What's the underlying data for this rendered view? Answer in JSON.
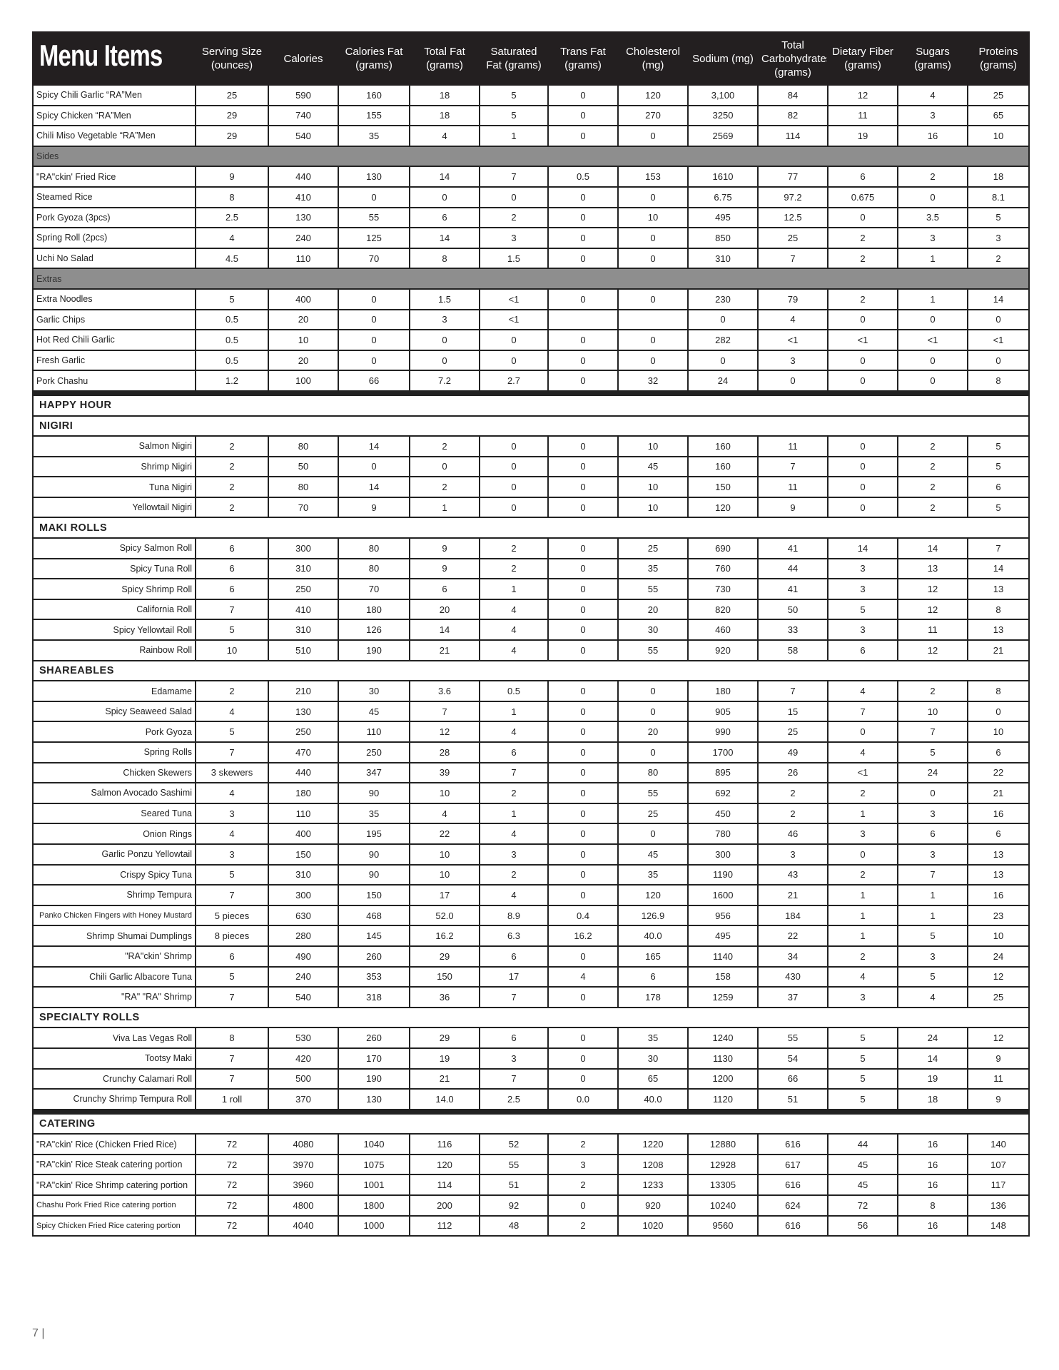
{
  "header": {
    "title": "Menu Items",
    "columns": [
      "Serving Size (ounces)",
      "Calories",
      "Calories Fat (grams)",
      "Total Fat (grams)",
      "Saturated Fat (grams)",
      "Trans Fat (grams)",
      "Cholesterol (mg)",
      "Sodium  (mg)",
      "Total Carbohydrates (grams)",
      "Dietary Fiber (grams)",
      "Sugars (grams)",
      "Proteins (grams)"
    ]
  },
  "rows": [
    {
      "type": "item",
      "name": "Spicy Chili Garlic “RA”Men",
      "values": [
        "25",
        "590",
        "160",
        "18",
        "5",
        "0",
        "120",
        "3,100",
        "84",
        "12",
        "4",
        "25"
      ]
    },
    {
      "type": "item",
      "name": "Spicy Chicken “RA”Men",
      "values": [
        "29",
        "740",
        "155",
        "18",
        "5",
        "0",
        "270",
        "3250",
        "82",
        "11",
        "3",
        "65"
      ]
    },
    {
      "type": "item",
      "name": "Chili Miso Vegetable “RA”Men",
      "values": [
        "29",
        "540",
        "35",
        "4",
        "1",
        "0",
        "0",
        "2569",
        "114",
        "19",
        "16",
        "10"
      ]
    },
    {
      "type": "sub",
      "name": "Sides"
    },
    {
      "type": "item",
      "name": "\"RA\"ckin' Fried Rice",
      "values": [
        "9",
        "440",
        "130",
        "14",
        "7",
        "0.5",
        "153",
        "1610",
        "77",
        "6",
        "2",
        "18"
      ]
    },
    {
      "type": "item",
      "name": "Steamed Rice",
      "values": [
        "8",
        "410",
        "0",
        "0",
        "0",
        "0",
        "0",
        "6.75",
        "97.2",
        "0.675",
        "0",
        "8.1"
      ]
    },
    {
      "type": "item",
      "name": "Pork Gyoza (3pcs)",
      "values": [
        "2.5",
        "130",
        "55",
        "6",
        "2",
        "0",
        "10",
        "495",
        "12.5",
        "0",
        "3.5",
        "5"
      ]
    },
    {
      "type": "item",
      "name": "Spring Roll (2pcs)",
      "values": [
        "4",
        "240",
        "125",
        "14",
        "3",
        "0",
        "0",
        "850",
        "25",
        "2",
        "3",
        "3"
      ]
    },
    {
      "type": "item",
      "name": "Uchi No Salad",
      "values": [
        "4.5",
        "110",
        "70",
        "8",
        "1.5",
        "0",
        "0",
        "310",
        "7",
        "2",
        "1",
        "2"
      ]
    },
    {
      "type": "sub",
      "name": "Extras"
    },
    {
      "type": "item",
      "name": "Extra Noodles",
      "values": [
        "5",
        "400",
        "0",
        "1.5",
        "<1",
        "0",
        "0",
        "230",
        "79",
        "2",
        "1",
        "14"
      ]
    },
    {
      "type": "item",
      "name": "Garlic Chips",
      "values": [
        "0.5",
        "20",
        "0",
        "3",
        "<1",
        "",
        "",
        "0",
        "4",
        "0",
        "0",
        "0"
      ]
    },
    {
      "type": "item",
      "name": "Hot Red Chili Garlic",
      "values": [
        "0.5",
        "10",
        "0",
        "0",
        "0",
        "0",
        "0",
        "282",
        "<1",
        "<1",
        "<1",
        "<1"
      ]
    },
    {
      "type": "item",
      "name": "Fresh Garlic",
      "values": [
        "0.5",
        "20",
        "0",
        "0",
        "0",
        "0",
        "0",
        "0",
        "3",
        "0",
        "0",
        "0"
      ]
    },
    {
      "type": "item",
      "name": "Pork Chashu",
      "values": [
        "1.2",
        "100",
        "66",
        "7.2",
        "2.7",
        "0",
        "32",
        "24",
        "0",
        "0",
        "0",
        "8"
      ]
    },
    {
      "type": "sec",
      "name": "HAPPY HOUR",
      "major": true
    },
    {
      "type": "sec",
      "name": "NIGIRI"
    },
    {
      "type": "item",
      "align": "right",
      "name": "Salmon Nigiri",
      "values": [
        "2",
        "80",
        "14",
        "2",
        "0",
        "0",
        "10",
        "160",
        "11",
        "0",
        "2",
        "5"
      ]
    },
    {
      "type": "item",
      "align": "right",
      "name": "Shrimp Nigiri",
      "values": [
        "2",
        "50",
        "0",
        "0",
        "0",
        "0",
        "45",
        "160",
        "7",
        "0",
        "2",
        "5"
      ]
    },
    {
      "type": "item",
      "align": "right",
      "name": "Tuna Nigiri",
      "values": [
        "2",
        "80",
        "14",
        "2",
        "0",
        "0",
        "10",
        "150",
        "11",
        "0",
        "2",
        "6"
      ]
    },
    {
      "type": "item",
      "align": "right",
      "name": "Yellowtail Nigiri",
      "values": [
        "2",
        "70",
        "9",
        "1",
        "0",
        "0",
        "10",
        "120",
        "9",
        "0",
        "2",
        "5"
      ]
    },
    {
      "type": "sec",
      "name": "MAKI ROLLS"
    },
    {
      "type": "item",
      "align": "right",
      "name": "Spicy Salmon Roll",
      "values": [
        "6",
        "300",
        "80",
        "9",
        "2",
        "0",
        "25",
        "690",
        "41",
        "14",
        "14",
        "7"
      ]
    },
    {
      "type": "item",
      "align": "right",
      "name": "Spicy Tuna Roll",
      "values": [
        "6",
        "310",
        "80",
        "9",
        "2",
        "0",
        "35",
        "760",
        "44",
        "3",
        "13",
        "14"
      ]
    },
    {
      "type": "item",
      "align": "right",
      "name": "Spicy Shrimp Roll",
      "values": [
        "6",
        "250",
        "70",
        "6",
        "1",
        "0",
        "55",
        "730",
        "41",
        "3",
        "12",
        "13"
      ]
    },
    {
      "type": "item",
      "align": "right",
      "name": "California Roll",
      "values": [
        "7",
        "410",
        "180",
        "20",
        "4",
        "0",
        "20",
        "820",
        "50",
        "5",
        "12",
        "8"
      ]
    },
    {
      "type": "item",
      "align": "right",
      "name": "Spicy Yellowtail Roll",
      "values": [
        "5",
        "310",
        "126",
        "14",
        "4",
        "0",
        "30",
        "460",
        "33",
        "3",
        "11",
        "13"
      ]
    },
    {
      "type": "item",
      "align": "right",
      "name": "Rainbow Roll",
      "values": [
        "10",
        "510",
        "190",
        "21",
        "4",
        "0",
        "55",
        "920",
        "58",
        "6",
        "12",
        "21"
      ]
    },
    {
      "type": "sec",
      "name": "SHAREABLES"
    },
    {
      "type": "item",
      "align": "right",
      "name": "Edamame",
      "values": [
        "2",
        "210",
        "30",
        "3.6",
        "0.5",
        "0",
        "0",
        "180",
        "7",
        "4",
        "2",
        "8"
      ]
    },
    {
      "type": "item",
      "align": "right",
      "name": "Spicy Seaweed Salad",
      "values": [
        "4",
        "130",
        "45",
        "7",
        "1",
        "0",
        "0",
        "905",
        "15",
        "7",
        "10",
        "0"
      ]
    },
    {
      "type": "item",
      "align": "right",
      "name": "Pork Gyoza",
      "values": [
        "5",
        "250",
        "110",
        "12",
        "4",
        "0",
        "20",
        "990",
        "25",
        "0",
        "7",
        "10"
      ]
    },
    {
      "type": "item",
      "align": "right",
      "name": "Spring Rolls",
      "values": [
        "7",
        "470",
        "250",
        "28",
        "6",
        "0",
        "0",
        "1700",
        "49",
        "4",
        "5",
        "6"
      ]
    },
    {
      "type": "item",
      "align": "right",
      "name": "Chicken Skewers",
      "values": [
        "3 skewers",
        "440",
        "347",
        "39",
        "7",
        "0",
        "80",
        "895",
        "26",
        "<1",
        "24",
        "22"
      ]
    },
    {
      "type": "item",
      "align": "right",
      "name": "Salmon Avocado Sashimi",
      "values": [
        "4",
        "180",
        "90",
        "10",
        "2",
        "0",
        "55",
        "692",
        "2",
        "2",
        "0",
        "21"
      ]
    },
    {
      "type": "item",
      "align": "right",
      "name": "Seared Tuna",
      "values": [
        "3",
        "110",
        "35",
        "4",
        "1",
        "0",
        "25",
        "450",
        "2",
        "1",
        "3",
        "16"
      ]
    },
    {
      "type": "item",
      "align": "right",
      "name": "Onion Rings",
      "values": [
        "4",
        "400",
        "195",
        "22",
        "4",
        "0",
        "0",
        "780",
        "46",
        "3",
        "6",
        "6"
      ]
    },
    {
      "type": "item",
      "align": "right",
      "name": "Garlic Ponzu Yellowtail",
      "values": [
        "3",
        "150",
        "90",
        "10",
        "3",
        "0",
        "45",
        "300",
        "3",
        "0",
        "3",
        "13"
      ]
    },
    {
      "type": "item",
      "align": "right",
      "name": "Crispy Spicy Tuna",
      "values": [
        "5",
        "310",
        "90",
        "10",
        "2",
        "0",
        "35",
        "1190",
        "43",
        "2",
        "7",
        "13"
      ]
    },
    {
      "type": "item",
      "align": "right",
      "name": "Shrimp Tempura",
      "values": [
        "7",
        "300",
        "150",
        "17",
        "4",
        "0",
        "120",
        "1600",
        "21",
        "1",
        "1",
        "16"
      ]
    },
    {
      "type": "item",
      "align": "right",
      "small": true,
      "name": "Panko Chicken Fingers with Honey Mustard",
      "values": [
        "5 pieces",
        "630",
        "468",
        "52.0",
        "8.9",
        "0.4",
        "126.9",
        "956",
        "184",
        "1",
        "1",
        "23"
      ]
    },
    {
      "type": "item",
      "align": "right",
      "name": "Shrimp Shumai Dumplings",
      "values": [
        "8 pieces",
        "280",
        "145",
        "16.2",
        "6.3",
        "16.2",
        "40.0",
        "495",
        "22",
        "1",
        "5",
        "10"
      ]
    },
    {
      "type": "item",
      "align": "right",
      "name": "\"RA\"ckin' Shrimp",
      "values": [
        "6",
        "490",
        "260",
        "29",
        "6",
        "0",
        "165",
        "1140",
        "34",
        "2",
        "3",
        "24"
      ]
    },
    {
      "type": "item",
      "align": "right",
      "name": "Chili Garlic Albacore Tuna",
      "values": [
        "5",
        "240",
        "353",
        "150",
        "17",
        "4",
        "6",
        "158",
        "430",
        "4",
        "5",
        "12"
      ]
    },
    {
      "type": "item",
      "align": "right",
      "name": "\"RA\" \"RA\" Shrimp",
      "values": [
        "7",
        "540",
        "318",
        "36",
        "7",
        "0",
        "178",
        "1259",
        "37",
        "3",
        "4",
        "25"
      ]
    },
    {
      "type": "sec",
      "name": "SPECIALTY ROLLS"
    },
    {
      "type": "item",
      "align": "right",
      "name": "Viva Las Vegas Roll",
      "values": [
        "8",
        "530",
        "260",
        "29",
        "6",
        "0",
        "35",
        "1240",
        "55",
        "5",
        "24",
        "12"
      ]
    },
    {
      "type": "item",
      "align": "right",
      "name": "Tootsy Maki",
      "values": [
        "7",
        "420",
        "170",
        "19",
        "3",
        "0",
        "30",
        "1130",
        "54",
        "5",
        "14",
        "9"
      ]
    },
    {
      "type": "item",
      "align": "right",
      "name": "Crunchy Calamari Roll",
      "values": [
        "7",
        "500",
        "190",
        "21",
        "7",
        "0",
        "65",
        "1200",
        "66",
        "5",
        "19",
        "11"
      ]
    },
    {
      "type": "item",
      "align": "right",
      "name": "Crunchy Shrimp Tempura Roll",
      "values": [
        "1 roll",
        "370",
        "130",
        "14.0",
        "2.5",
        "0.0",
        "40.0",
        "1120",
        "51",
        "5",
        "18",
        "9"
      ]
    },
    {
      "type": "sec",
      "name": "CATERING",
      "major": true
    },
    {
      "type": "item",
      "name": "\"RA\"ckin' Rice (Chicken Fried Rice)",
      "values": [
        "72",
        "4080",
        "1040",
        "116",
        "52",
        "2",
        "1220",
        "12880",
        "616",
        "44",
        "16",
        "140"
      ]
    },
    {
      "type": "item",
      "name": "\"RA\"ckin' Rice Steak catering portion",
      "values": [
        "72",
        "3970",
        "1075",
        "120",
        "55",
        "3",
        "1208",
        "12928",
        "617",
        "45",
        "16",
        "107"
      ]
    },
    {
      "type": "item",
      "name": "\"RA\"ckin' Rice Shrimp catering portion",
      "values": [
        "72",
        "3960",
        "1001",
        "114",
        "51",
        "2",
        "1233",
        "13305",
        "616",
        "45",
        "16",
        "117"
      ]
    },
    {
      "type": "item",
      "small": true,
      "name": "Chashu Pork Fried Rice catering portion",
      "values": [
        "72",
        "4800",
        "1800",
        "200",
        "92",
        "0",
        "920",
        "10240",
        "624",
        "72",
        "8",
        "136"
      ]
    },
    {
      "type": "item",
      "small": true,
      "name": "Spicy Chicken Fried Rice catering portion",
      "values": [
        "72",
        "4040",
        "1000",
        "112",
        "48",
        "2",
        "1020",
        "9560",
        "616",
        "56",
        "16",
        "148"
      ]
    }
  ],
  "footer": {
    "page": "7 |"
  }
}
